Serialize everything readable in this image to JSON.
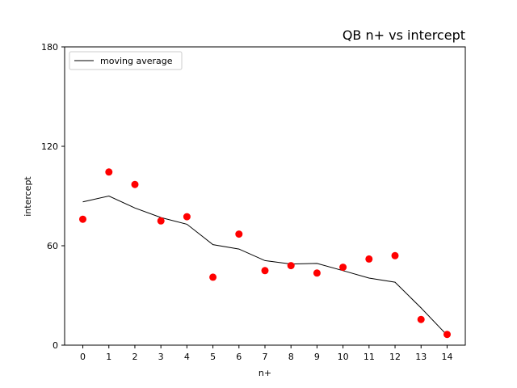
{
  "chart_data": {
    "type": "scatter",
    "title": "QB n+ vs intercept",
    "xlabel": "n+",
    "ylabel": "intercept",
    "xlim": [
      -0.7,
      14.7
    ],
    "ylim": [
      0,
      180
    ],
    "x_ticks": [
      "0",
      "1",
      "2",
      "3",
      "4",
      "5",
      "6",
      "7",
      "8",
      "9",
      "10",
      "11",
      "12",
      "13",
      "14"
    ],
    "y_ticks": [
      "0",
      "60",
      "120",
      "180"
    ],
    "grid": false,
    "legend_position": "top-left",
    "series": [
      {
        "kind": "scatter",
        "color": "#ff0000",
        "x": [
          0,
          1,
          2,
          3,
          4,
          5,
          6,
          7,
          8,
          9,
          10,
          11,
          12,
          13,
          14
        ],
        "y": [
          76,
          104.5,
          97,
          75,
          77.5,
          41,
          67,
          45,
          48,
          43.5,
          47,
          52,
          54,
          15.5,
          6.5
        ]
      },
      {
        "kind": "line",
        "name": "moving average",
        "color": "#000000",
        "x": [
          0,
          1,
          2,
          3,
          4,
          5,
          6,
          7,
          8,
          9,
          10,
          11,
          12,
          13,
          14
        ],
        "y": [
          86.5,
          90,
          82.8,
          77,
          73,
          60.7,
          58,
          51,
          49,
          49.3,
          45,
          40.5,
          38,
          22.5,
          6
        ]
      }
    ]
  }
}
